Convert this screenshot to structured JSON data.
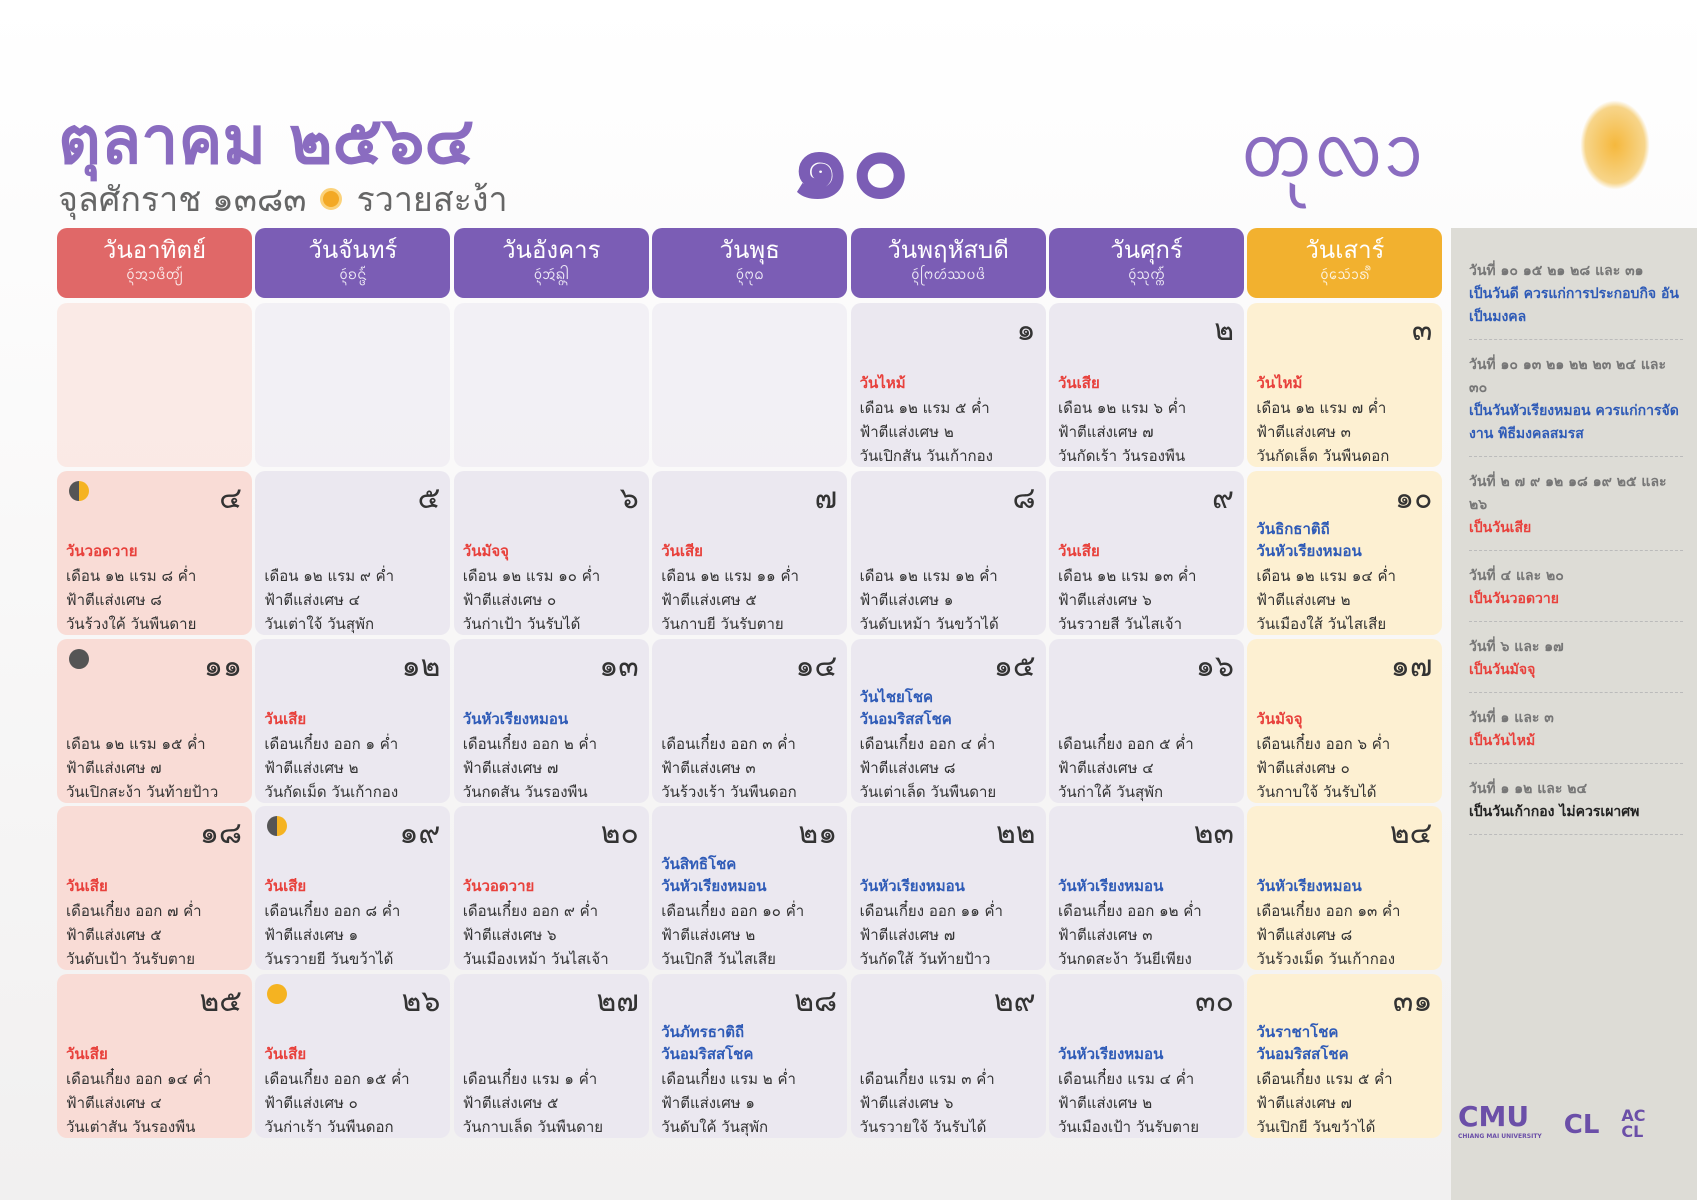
{
  "header": {
    "title": "ตุลาคม ๒๕๖๔",
    "era": "จุลศักราช ๑๓๘๓",
    "year_name": "รวายสะง้า",
    "month_number": "๑๐",
    "month_lanna": "ᨲᩩᩃᩣ"
  },
  "weekdays": [
    {
      "name": "วันอาทิตย์",
      "lanna": "ᩅᩢ᩠ᨶᩋᩣᨴᩥᨲ᩠ᨿ᩼",
      "color": "#e06868"
    },
    {
      "name": "วันจันทร์",
      "lanna": "ᩅᩢ᩠ᨶᨧᨶ᩠ᨴ᩼",
      "color": "#7b5db5"
    },
    {
      "name": "วันอังคาร",
      "lanna": "ᩅᩢ᩠ᨶᩋᩢᨦ᩠ᨣᩤ᩠ᨶ",
      "color": "#7b5db5"
    },
    {
      "name": "วันพุธ",
      "lanna": "ᩅᩢ᩠ᨶᨻᩩᨵ",
      "color": "#7b5db5"
    },
    {
      "name": "วันพฤหัสบดี",
      "lanna": "ᩅᩢ᩠ᨶᨻᩕᩉᩢᩔᨷᨴᩦ",
      "color": "#7b5db5"
    },
    {
      "name": "วันศุกร์",
      "lanna": "ᩅᩢ᩠ᨶᩈᩩᨠ᩠ᨠ᩼",
      "color": "#7b5db5"
    },
    {
      "name": "วันเสาร์",
      "lanna": "ᩅᩢ᩠ᨶᩈᩮᩢᩣᩁ᩺",
      "color": "#f2b12f"
    }
  ],
  "cells": [
    null,
    null,
    null,
    null,
    {
      "day": "๑",
      "tags": [
        {
          "text": "วันไหม้",
          "color": "#e8413c"
        }
      ],
      "lines": [
        "เดือน ๑๒ แรม ๕ ค่ำ",
        "ฟ้าตีแส่งเศษ ๒",
        "วันเปิกสัน วันเก้ากอง"
      ]
    },
    {
      "day": "๒",
      "tags": [
        {
          "text": "วันเสีย",
          "color": "#e8413c"
        }
      ],
      "lines": [
        "เดือน ๑๒ แรม ๖ ค่ำ",
        "ฟ้าตีแส่งเศษ ๗",
        "วันกัดเร้า วันรองพืน"
      ]
    },
    {
      "day": "๓",
      "tags": [
        {
          "text": "วันไหม้",
          "color": "#e8413c"
        }
      ],
      "lines": [
        "เดือน ๑๒ แรม ๗ ค่ำ",
        "ฟ้าตีแส่งเศษ ๓",
        "วันกัดเล็ด วันพืนดอก"
      ]
    },
    {
      "day": "๔",
      "moon": "half",
      "tags": [
        {
          "text": "วันวอดวาย",
          "color": "#e8413c"
        }
      ],
      "lines": [
        "เดือน ๑๒ แรม ๘ ค่ำ",
        "ฟ้าตีแส่งเศษ ๘",
        "วันร้วงใค้ วันพืนดาย"
      ]
    },
    {
      "day": "๕",
      "tags": [],
      "lines": [
        "เดือน ๑๒ แรม ๙ ค่ำ",
        "ฟ้าตีแส่งเศษ ๔",
        "วันเต่าใจ้ วันสุพัก"
      ]
    },
    {
      "day": "๖",
      "tags": [
        {
          "text": "วันมัจจุ",
          "color": "#e8413c"
        }
      ],
      "lines": [
        "เดือน ๑๒ แรม ๑๐ ค่ำ",
        "ฟ้าตีแส่งเศษ ๐",
        "วันก่าเป้า วันรับได้"
      ]
    },
    {
      "day": "๗",
      "tags": [
        {
          "text": "วันเสีย",
          "color": "#e8413c"
        }
      ],
      "lines": [
        "เดือน ๑๒ แรม ๑๑ ค่ำ",
        "ฟ้าตีแส่งเศษ ๕",
        "วันกาบยี วันรับตาย"
      ]
    },
    {
      "day": "๘",
      "tags": [],
      "lines": [
        "เดือน ๑๒ แรม ๑๒ ค่ำ",
        "ฟ้าตีแส่งเศษ ๑",
        "วันดับเหม้า วันขว้าได้"
      ]
    },
    {
      "day": "๙",
      "tags": [
        {
          "text": "วันเสีย",
          "color": "#e8413c"
        }
      ],
      "lines": [
        "เดือน ๑๒ แรม ๑๓ ค่ำ",
        "ฟ้าตีแส่งเศษ ๖",
        "วันรวายสี วันไสเจ้า"
      ]
    },
    {
      "day": "๑๐",
      "tags": [
        {
          "text": "วันธิกธาติถี",
          "color": "#2f5bb7"
        },
        {
          "text": "วันหัวเรียงหมอน",
          "color": "#2f5bb7"
        }
      ],
      "lines": [
        "เดือน ๑๒ แรม ๑๔ ค่ำ",
        "ฟ้าตีแส่งเศษ ๒",
        "วันเมืองใส้ วันไสเสีย"
      ]
    },
    {
      "day": "๑๑",
      "moon": "new",
      "tags": [],
      "lines": [
        "เดือน ๑๒ แรม ๑๕ ค่ำ",
        "ฟ้าตีแส่งเศษ ๗",
        "วันเปิกสะง้า วันท้ายป้าว"
      ]
    },
    {
      "day": "๑๒",
      "tags": [
        {
          "text": "วันเสีย",
          "color": "#e8413c"
        }
      ],
      "lines": [
        "เดือนเกี๋ยง ออก ๑ ค่ำ",
        "ฟ้าตีแส่งเศษ ๒",
        "วันกัดเม็ด วันเก้ากอง"
      ]
    },
    {
      "day": "๑๓",
      "tags": [
        {
          "text": "วันหัวเรียงหมอน",
          "color": "#2f5bb7"
        }
      ],
      "lines": [
        "เดือนเกี๋ยง ออก ๒ ค่ำ",
        "ฟ้าตีแส่งเศษ ๗",
        "วันกดสัน วันรองพืน"
      ]
    },
    {
      "day": "๑๔",
      "tags": [],
      "lines": [
        "เดือนเกี๋ยง ออก ๓ ค่ำ",
        "ฟ้าตีแส่งเศษ ๓",
        "วันร้วงเร้า วันพืนดอก"
      ]
    },
    {
      "day": "๑๕",
      "tags": [
        {
          "text": "วันไชยโชค",
          "color": "#2f5bb7"
        },
        {
          "text": "วันอมริสสโชค",
          "color": "#2f5bb7"
        }
      ],
      "lines": [
        "เดือนเกี๋ยง ออก ๔ ค่ำ",
        "ฟ้าตีแส่งเศษ ๘",
        "วันเต่าเล็ด วันพืนดาย"
      ]
    },
    {
      "day": "๑๖",
      "tags": [],
      "lines": [
        "เดือนเกี๋ยง ออก ๕ ค่ำ",
        "ฟ้าตีแส่งเศษ ๔",
        "วันก่าใค้ วันสุพัก"
      ]
    },
    {
      "day": "๑๗",
      "tags": [
        {
          "text": "วันมัจจุ",
          "color": "#e8413c"
        }
      ],
      "lines": [
        "เดือนเกี๋ยง ออก ๖ ค่ำ",
        "ฟ้าตีแส่งเศษ ๐",
        "วันกาบใจ้ วันรับได้"
      ]
    },
    {
      "day": "๑๘",
      "tags": [
        {
          "text": "วันเสีย",
          "color": "#e8413c"
        }
      ],
      "lines": [
        "เดือนเกี๋ยง ออก ๗ ค่ำ",
        "ฟ้าตีแส่งเศษ ๕",
        "วันดับเป้า วันรับตาย"
      ]
    },
    {
      "day": "๑๙",
      "moon": "half",
      "tags": [
        {
          "text": "วันเสีย",
          "color": "#e8413c"
        }
      ],
      "lines": [
        "เดือนเกี๋ยง ออก ๘ ค่ำ",
        "ฟ้าตีแส่งเศษ ๑",
        "วันรวายยี วันขว้าได้"
      ]
    },
    {
      "day": "๒๐",
      "tags": [
        {
          "text": "วันวอดวาย",
          "color": "#e8413c"
        }
      ],
      "lines": [
        "เดือนเกี๋ยง ออก ๙ ค่ำ",
        "ฟ้าตีแส่งเศษ ๖",
        "วันเมืองเหม้า วันไสเจ้า"
      ]
    },
    {
      "day": "๒๑",
      "tags": [
        {
          "text": "วันสิทธิโชค",
          "color": "#2f5bb7"
        },
        {
          "text": "วันหัวเรียงหมอน",
          "color": "#2f5bb7"
        }
      ],
      "lines": [
        "เดือนเกี๋ยง ออก ๑๐ ค่ำ",
        "ฟ้าตีแส่งเศษ ๒",
        "วันเปิกสี วันไสเสีย"
      ]
    },
    {
      "day": "๒๒",
      "tags": [
        {
          "text": "วันหัวเรียงหมอน",
          "color": "#2f5bb7"
        }
      ],
      "lines": [
        "เดือนเกี๋ยง ออก ๑๑ ค่ำ",
        "ฟ้าตีแส่งเศษ ๗",
        "วันกัดใส้ วันท้ายป้าว"
      ]
    },
    {
      "day": "๒๓",
      "tags": [
        {
          "text": "วันหัวเรียงหมอน",
          "color": "#2f5bb7"
        }
      ],
      "lines": [
        "เดือนเกี๋ยง ออก ๑๒ ค่ำ",
        "ฟ้าตีแส่งเศษ ๓",
        "วันกดสะง้า วันยีเพียง"
      ]
    },
    {
      "day": "๒๔",
      "tags": [
        {
          "text": "วันหัวเรียงหมอน",
          "color": "#2f5bb7"
        }
      ],
      "lines": [
        "เดือนเกี๋ยง ออก ๑๓ ค่ำ",
        "ฟ้าตีแส่งเศษ ๘",
        "วันร้วงเม็ด วันเก้ากอง"
      ]
    },
    {
      "day": "๒๕",
      "tags": [
        {
          "text": "วันเสีย",
          "color": "#e8413c"
        }
      ],
      "lines": [
        "เดือนเกี๋ยง ออก ๑๔ ค่ำ",
        "ฟ้าตีแส่งเศษ ๔",
        "วันเต่าสัน วันรองพืน"
      ]
    },
    {
      "day": "๒๖",
      "moon": "full",
      "tags": [
        {
          "text": "วันเสีย",
          "color": "#e8413c"
        }
      ],
      "lines": [
        "เดือนเกี๋ยง ออก ๑๕ ค่ำ",
        "ฟ้าตีแส่งเศษ ๐",
        "วันก่าเร้า วันพืนดอก"
      ]
    },
    {
      "day": "๒๗",
      "tags": [],
      "lines": [
        "เดือนเกี๋ยง แรม ๑ ค่ำ",
        "ฟ้าตีแส่งเศษ ๕",
        "วันกาบเล็ด วันพืนดาย"
      ]
    },
    {
      "day": "๒๘",
      "tags": [
        {
          "text": "วันภัทรธาติถี",
          "color": "#2f5bb7"
        },
        {
          "text": "วันอมริสสโชค",
          "color": "#2f5bb7"
        }
      ],
      "lines": [
        "เดือนเกี๋ยง แรม ๒ ค่ำ",
        "ฟ้าตีแส่งเศษ ๑",
        "วันดับใค้ วันสุพัก"
      ]
    },
    {
      "day": "๒๙",
      "tags": [],
      "lines": [
        "เดือนเกี๋ยง แรม ๓ ค่ำ",
        "ฟ้าตีแส่งเศษ ๖",
        "วันรวายใจ้ วันรับได้"
      ]
    },
    {
      "day": "๓๐",
      "tags": [
        {
          "text": "วันหัวเรียงหมอน",
          "color": "#2f5bb7"
        }
      ],
      "lines": [
        "เดือนเกี๋ยง แรม ๔ ค่ำ",
        "ฟ้าตีแส่งเศษ ๒",
        "วันเมืองเป้า วันรับตาย"
      ]
    },
    {
      "day": "๓๑",
      "tags": [
        {
          "text": "วันราชาโชค",
          "color": "#2f5bb7"
        },
        {
          "text": "วันอมริสสโชค",
          "color": "#2f5bb7"
        }
      ],
      "lines": [
        "เดือนเกี๋ยง แรม ๕ ค่ำ",
        "ฟ้าตีแส่งเศษ ๗",
        "วันเปิกยี วันขว้าได้"
      ]
    }
  ],
  "notes": [
    {
      "days": "วันที่ ๑๐ ๑๕ ๒๑ ๒๘ และ ๓๑",
      "text": "เป็นวันดี ควรแก่การประกอบกิจ อันเป็นมงคล",
      "color": "#2f5bb7"
    },
    {
      "days": "วันที่ ๑๐ ๑๓ ๒๑ ๒๒ ๒๓ ๒๔ และ ๓๐",
      "text": "เป็นวันหัวเรียงหมอน ควรแก่การจัดงาน พิธีมงคลสมรส",
      "color": "#2f5bb7"
    },
    {
      "days": "วันที่ ๒ ๗ ๙ ๑๒ ๑๘ ๑๙ ๒๕ และ ๒๖",
      "text": "เป็นวันเสีย",
      "color": "#e8413c"
    },
    {
      "days": "วันที่ ๔ และ ๒๐",
      "text": "เป็นวันวอดวาย",
      "color": "#e8413c"
    },
    {
      "days": "วันที่ ๖ และ ๑๗",
      "text": "เป็นวันมัจจุ",
      "color": "#e8413c"
    },
    {
      "days": "วันที่ ๑ และ ๓",
      "text": "เป็นวันไหม้",
      "color": "#e8413c"
    },
    {
      "days": "วันที่ ๑ ๑๒ และ ๒๔",
      "text": "เป็นวันเก้ากอง ไม่ควรเผาศพ",
      "color": "#222222"
    }
  ],
  "logos": {
    "cmu": "CMU",
    "cmu_sub": "CHIANG MAI UNIVERSITY",
    "cl": "CL",
    "accl": "ACCL"
  }
}
